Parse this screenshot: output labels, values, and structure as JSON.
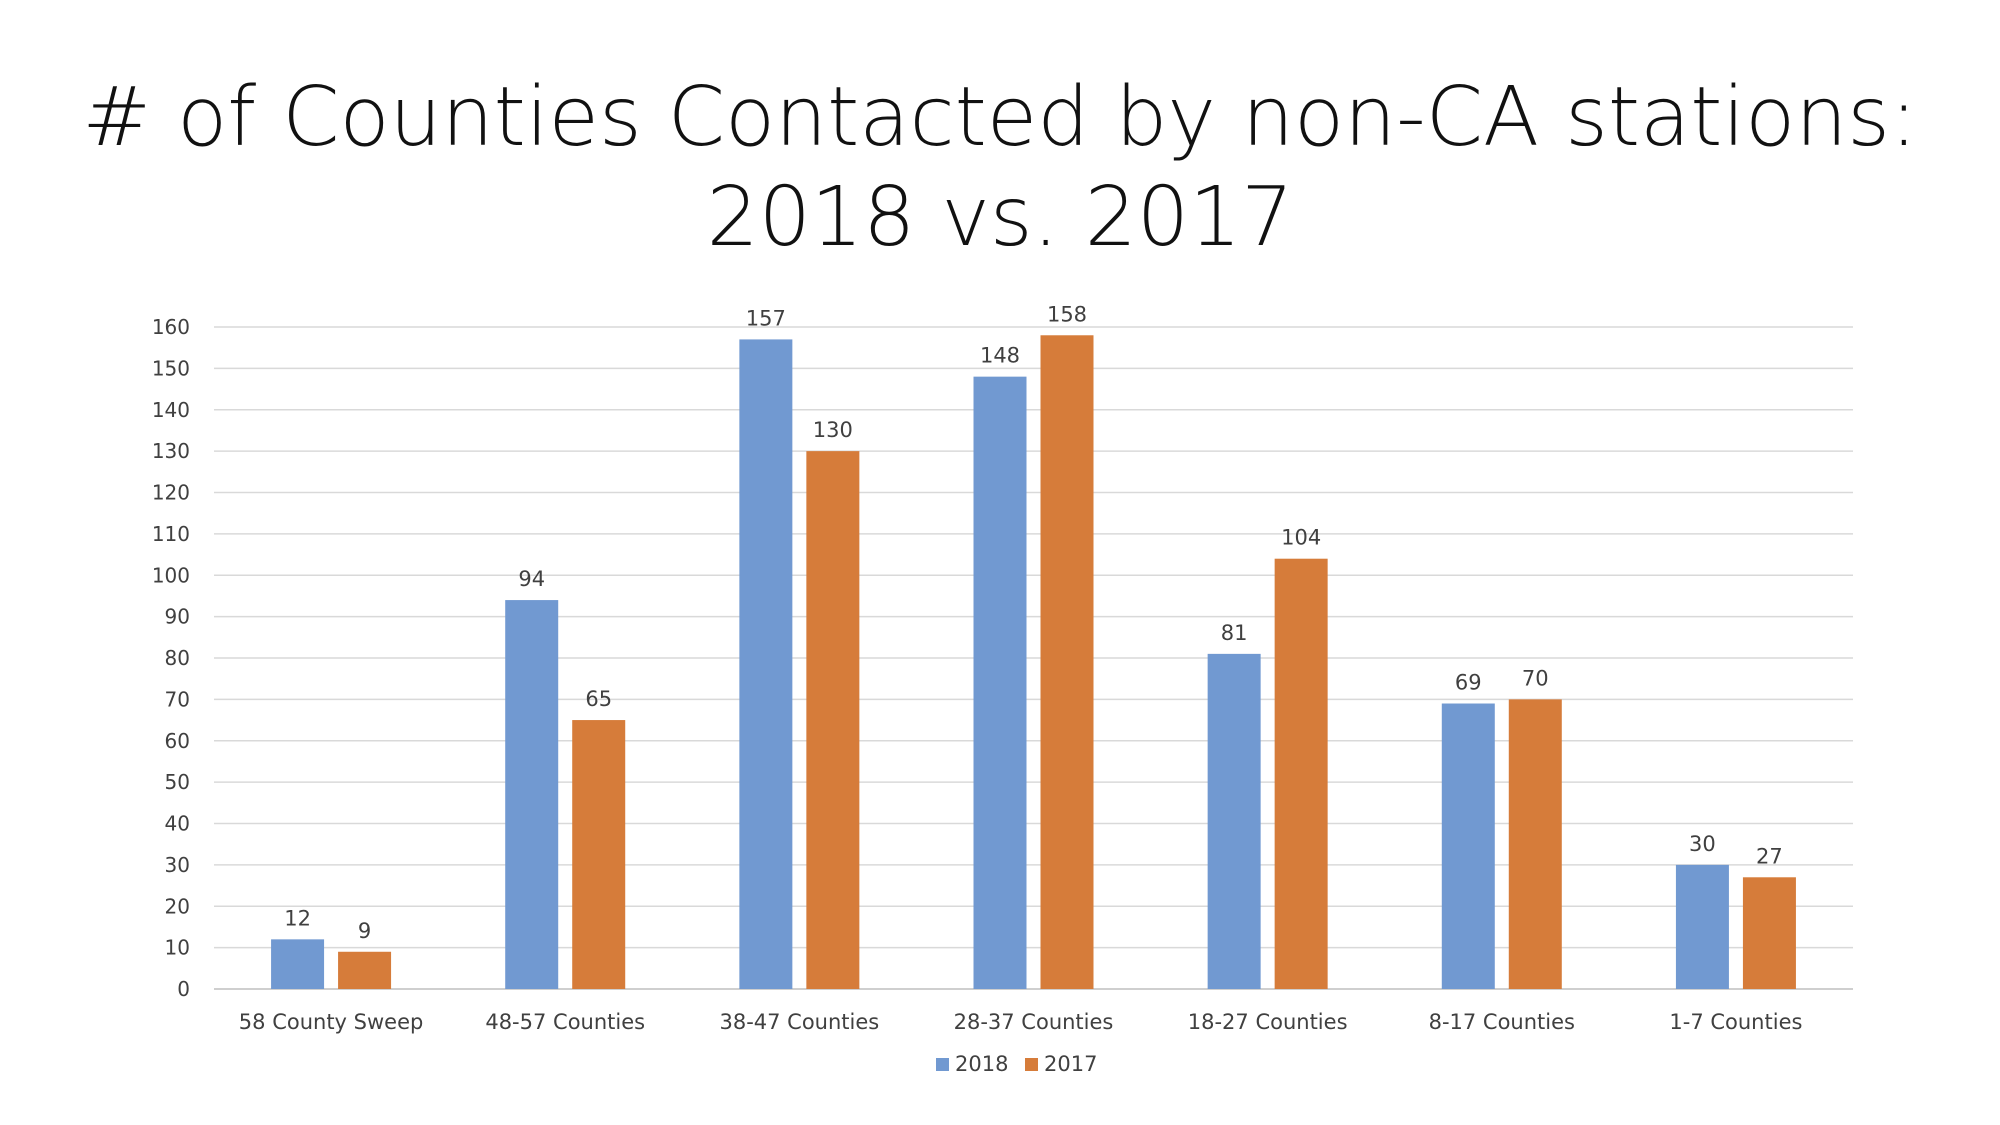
{
  "chart_data": {
    "type": "bar",
    "title_lines": [
      "# of Counties Contacted by non-CA stations:",
      "2018 vs. 2017"
    ],
    "categories": [
      "58 County Sweep",
      "48-57 Counties",
      "38-47 Counties",
      "28-37 Counties",
      "18-27 Counties",
      "8-17 Counties",
      "1-7 Counties"
    ],
    "series": [
      {
        "name": "2018",
        "color": "#7199D1",
        "values": [
          12,
          94,
          157,
          148,
          81,
          69,
          30
        ]
      },
      {
        "name": "2017",
        "color": "#D67C3A",
        "values": [
          9,
          65,
          130,
          158,
          104,
          70,
          27
        ]
      }
    ],
    "ylim": [
      0,
      160
    ],
    "y_ticks": [
      0,
      10,
      20,
      30,
      40,
      50,
      60,
      70,
      80,
      90,
      100,
      110,
      120,
      130,
      140,
      150,
      160
    ],
    "xlabel": "",
    "ylabel": "",
    "grid": true,
    "legend_position": "bottom-center",
    "data_labels": true
  }
}
